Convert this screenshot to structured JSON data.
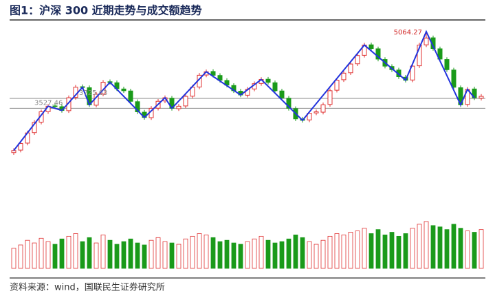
{
  "chart_data": {
    "type": "candlestick",
    "title": "图1：沪深 300 近期走势与成交额趋势",
    "source": "资料来源：wind，国联民生证券研究所",
    "up_color": "#e03030",
    "down_color": "#1a9a1a",
    "zigzag_color": "#2233dd",
    "level_color": "#8a8a8a",
    "open": [
      2640,
      2690,
      2830,
      3040,
      3250,
      3460,
      3575,
      3560,
      3480,
      3745,
      3960,
      3940,
      3590,
      3815,
      4060,
      4040,
      3915,
      3875,
      3660,
      3450,
      3340,
      3530,
      3675,
      3730,
      3520,
      3575,
      3770,
      3955,
      4195,
      4265,
      4185,
      4085,
      3985,
      3870,
      3790,
      3915,
      4025,
      4110,
      4040,
      3875,
      3730,
      3520,
      3310,
      3295,
      3435,
      3450,
      3605,
      3890,
      4100,
      4240,
      4420,
      4590,
      4800,
      4720,
      4505,
      4365,
      4295,
      4150,
      4095,
      4380,
      4800,
      4940,
      4720,
      4505,
      4295,
      3940,
      3605,
      3915,
      3730
    ],
    "high": [
      2726,
      2867,
      3079,
      3290,
      3502,
      3614,
      3620,
      3605,
      3784,
      3995,
      4005,
      3985,
      3854,
      4094,
      4105,
      4085,
      3960,
      3920,
      3705,
      3495,
      3572,
      3713,
      3784,
      3775,
      3614,
      3812,
      3995,
      4235,
      4305,
      4310,
      4230,
      4130,
      4030,
      3915,
      3953,
      4066,
      4150,
      4155,
      4085,
      3920,
      3775,
      3565,
      3355,
      3474,
      3502,
      3643,
      3925,
      4136,
      4277,
      4460,
      4630,
      4841,
      4845,
      4765,
      4550,
      4410,
      4340,
      4195,
      4418,
      4841,
      5064.27,
      4985,
      4765,
      4550,
      4340,
      3985,
      3953,
      3960,
      3812
    ],
    "low": [
      2595,
      2645,
      2785,
      2995,
      3205,
      3415,
      3524,
      3440,
      3435,
      3700,
      3905,
      3553,
      3545,
      3770,
      4004,
      3877,
      3835,
      3623,
      3412,
      3299,
      3295,
      3485,
      3630,
      3482,
      3475,
      3530,
      3725,
      3910,
      4150,
      4145,
      4046,
      3948,
      3835,
      3750,
      3745,
      3870,
      3980,
      4004,
      3835,
      3694,
      3482,
      3271,
      3242,
      3250,
      3390,
      3405,
      3560,
      3845,
      4055,
      4195,
      4375,
      4545,
      4681,
      4469,
      4328,
      4257,
      4116,
      4046,
      4050,
      4335,
      4755,
      4681,
      4469,
      4257,
      3905,
      3553,
      3560,
      3694,
      3685
    ],
    "close": [
      2681,
      2822,
      3034,
      3245,
      3457,
      3569,
      3569,
      3485,
      3739,
      3950,
      3950,
      3598,
      3809,
      4049,
      4049,
      3922,
      3880,
      3668,
      3457,
      3344,
      3527,
      3668,
      3739,
      3527,
      3569,
      3767,
      3950,
      4190,
      4260,
      4190,
      4091,
      3993,
      3880,
      3795,
      3908,
      4021,
      4105,
      4049,
      3880,
      3739,
      3527,
      3316,
      3287,
      3429,
      3457,
      3598,
      3880,
      4091,
      4232,
      4415,
      4585,
      4796,
      4726,
      4514,
      4373,
      4302,
      4161,
      4091,
      4373,
      4796,
      4937,
      4726,
      4514,
      4302,
      3950,
      3598,
      3908,
      3739,
      3767
    ],
    "volume": [
      30,
      35,
      42,
      38,
      45,
      40,
      36,
      44,
      48,
      52,
      40,
      46,
      38,
      50,
      42,
      36,
      40,
      44,
      38,
      35,
      42,
      46,
      40,
      38,
      36,
      44,
      48,
      52,
      50,
      46,
      40,
      42,
      38,
      36,
      40,
      44,
      48,
      42,
      38,
      40,
      44,
      50,
      46,
      40,
      36,
      42,
      48,
      52,
      50,
      54,
      56,
      60,
      52,
      58,
      50,
      54,
      48,
      52,
      60,
      66,
      70,
      64,
      62,
      58,
      66,
      60,
      56,
      54,
      58
    ],
    "levels": [
      3725.63,
      3527.46
    ],
    "peak_label": 5064.27,
    "zigzag": {
      "x": [
        0,
        5,
        7,
        10,
        11,
        14,
        19,
        22,
        23,
        28,
        33,
        36,
        42,
        51,
        57,
        60,
        65,
        66,
        67
      ],
      "values": [
        2681,
        3569,
        3485,
        3950,
        3598,
        4049,
        3344,
        3739,
        3527,
        4260,
        3795,
        4105,
        3287,
        4796,
        4091,
        5064.27,
        3598,
        3908,
        3739
      ]
    }
  }
}
